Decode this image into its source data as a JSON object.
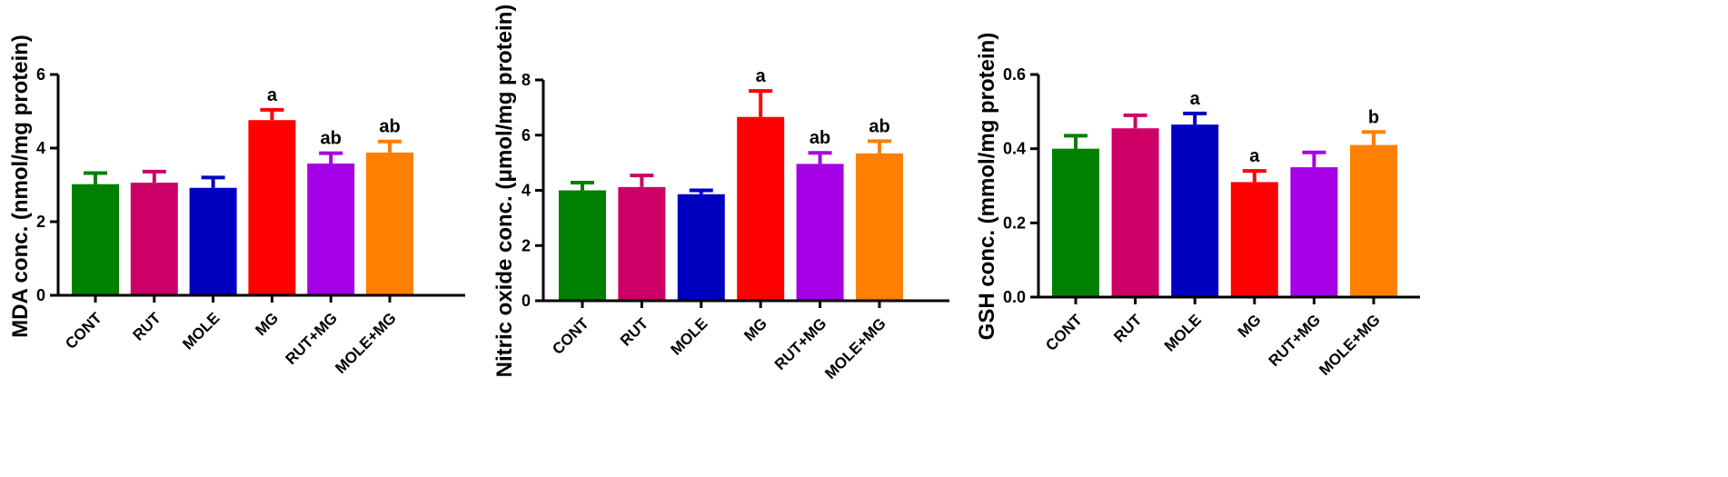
{
  "chart_data": [
    {
      "type": "bar",
      "ylabel": "MDA conc. (nmol/mg protein)",
      "categories": [
        "CONT",
        "RUT",
        "MOLE",
        "MG",
        "RUT+MG",
        "MOLE+MG"
      ],
      "values": [
        3.02,
        3.06,
        2.92,
        4.76,
        3.58,
        3.88
      ],
      "errors": [
        0.3,
        0.3,
        0.28,
        0.28,
        0.28,
        0.3
      ],
      "sig_labels": [
        "",
        "",
        "",
        "a",
        "ab",
        "ab"
      ],
      "colors": [
        "#008000",
        "#cc0066",
        "#0000c0",
        "#ff0000",
        "#a600e6",
        "#ff8000"
      ],
      "ylim": [
        0,
        6
      ],
      "yticks": [
        "0",
        "2",
        "4",
        "6"
      ]
    },
    {
      "type": "bar",
      "ylabel": "Nitric oxide conc. (μmol/mg protein)",
      "categories": [
        "CONT",
        "RUT",
        "MOLE",
        "MG",
        "RUT+MG",
        "MOLE+MG"
      ],
      "values": [
        4.0,
        4.12,
        3.86,
        6.66,
        4.96,
        5.34
      ],
      "errors": [
        0.28,
        0.42,
        0.14,
        0.94,
        0.4,
        0.44
      ],
      "sig_labels": [
        "",
        "",
        "",
        "a",
        "ab",
        "ab"
      ],
      "colors": [
        "#008000",
        "#cc0066",
        "#0000c0",
        "#ff0000",
        "#a600e6",
        "#ff8000"
      ],
      "ylim": [
        0,
        8
      ],
      "yticks": [
        "0",
        "2",
        "4",
        "6",
        "8"
      ]
    },
    {
      "type": "bar",
      "ylabel": "GSH conc. (mmol/mg protein)",
      "categories": [
        "CONT",
        "RUT",
        "MOLE",
        "MG",
        "RUT+MG",
        "MOLE+MG"
      ],
      "values": [
        0.4,
        0.455,
        0.465,
        0.31,
        0.35,
        0.41
      ],
      "errors": [
        0.035,
        0.035,
        0.03,
        0.03,
        0.04,
        0.035
      ],
      "sig_labels": [
        "",
        "",
        "a",
        "a",
        "",
        "b"
      ],
      "colors": [
        "#008000",
        "#cc0066",
        "#0000c0",
        "#ff0000",
        "#a600e6",
        "#ff8000"
      ],
      "ylim": [
        0,
        0.6
      ],
      "yticks": [
        "0.0",
        "0.2",
        "0.4",
        "0.6"
      ]
    }
  ]
}
